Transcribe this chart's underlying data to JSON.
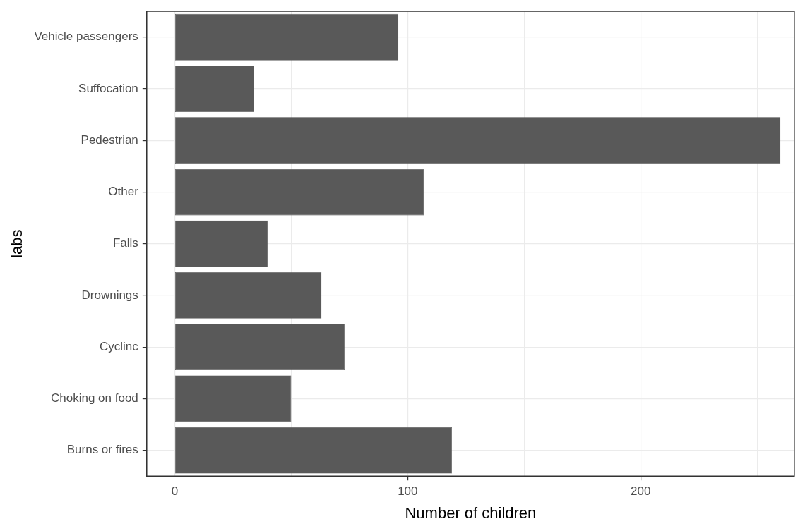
{
  "chart_data": {
    "type": "bar",
    "orientation": "horizontal",
    "xlabel": "Number of children",
    "ylabel": "labs",
    "categories": [
      "Vehicle passengers",
      "Suffocation",
      "Pedestrian",
      "Other",
      "Falls",
      "Drownings",
      "Cyclinc",
      "Choking on food",
      "Burns or fires"
    ],
    "values": [
      96,
      34,
      260,
      107,
      40,
      63,
      73,
      50,
      119
    ],
    "color": "#595959",
    "xlim": [
      -12,
      266
    ],
    "xticks": [
      0,
      {
        "value": 50,
        "label": null
      },
      100,
      {
        "value": 150,
        "label": null
      },
      200,
      {
        "value": 250,
        "label": null
      }
    ],
    "grid": true
  }
}
